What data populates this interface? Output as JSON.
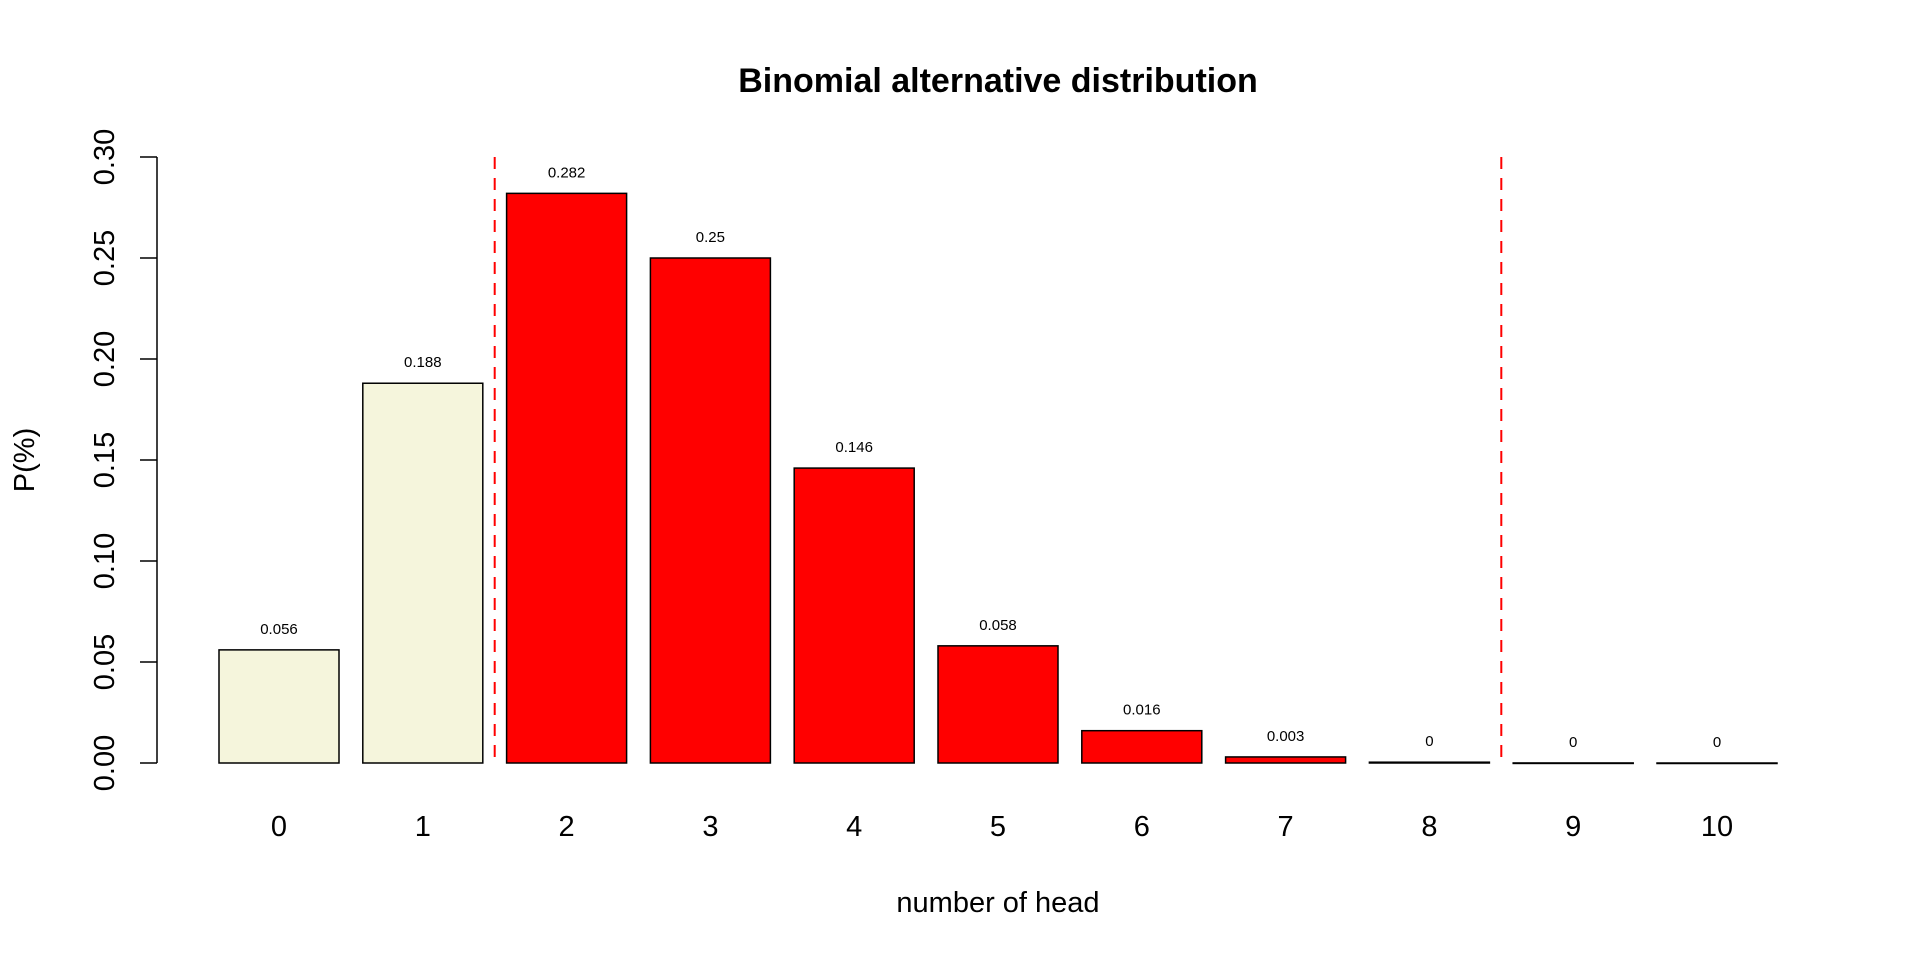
{
  "chart_data": {
    "type": "bar",
    "title": "Binomial alternative distribution",
    "xlabel": "number of head",
    "ylabel": "P(%)",
    "ylim": [
      0,
      0.3
    ],
    "yticks": [
      "0.00",
      "0.05",
      "0.10",
      "0.15",
      "0.20",
      "0.25",
      "0.30"
    ],
    "categories": [
      "0",
      "1",
      "2",
      "3",
      "4",
      "5",
      "6",
      "7",
      "8",
      "9",
      "10"
    ],
    "values": [
      0.056,
      0.188,
      0.282,
      0.25,
      0.146,
      0.058,
      0.016,
      0.003,
      0.0004,
      3e-05,
      1e-06
    ],
    "data_labels": [
      "0.056",
      "0.188",
      "0.282",
      "0.25",
      "0.146",
      "0.058",
      "0.016",
      "0.003",
      "0",
      "0",
      "0"
    ],
    "bar_colors": [
      "#F5F5DC",
      "#F5F5DC",
      "#FF0000",
      "#FF0000",
      "#FF0000",
      "#FF0000",
      "#FF0000",
      "#FF0000",
      "#FF0000",
      "#F5F5DC",
      "#F5F5DC"
    ],
    "reference_lines": [
      {
        "between_categories": [
          "1",
          "2"
        ],
        "style": "dashed",
        "color": "#FF0000"
      },
      {
        "between_categories": [
          "8",
          "9"
        ],
        "style": "dashed",
        "color": "#FF0000"
      }
    ],
    "grid": false
  }
}
